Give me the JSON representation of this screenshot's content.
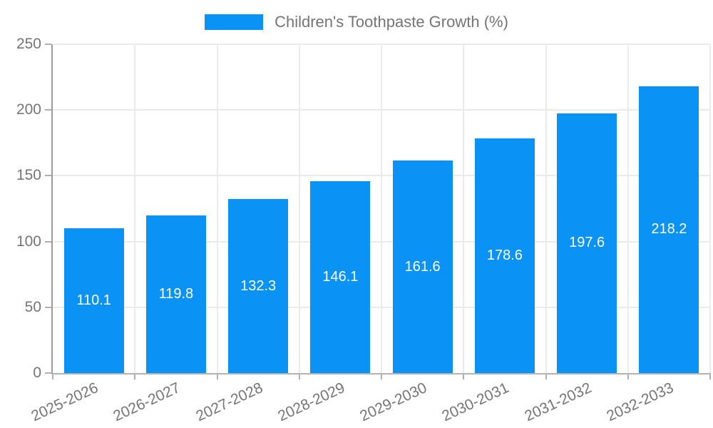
{
  "chart_data": {
    "type": "bar",
    "title": "Children's Toothpaste Growth (%)",
    "legend": [
      "Children's Toothpaste Growth (%)"
    ],
    "legend_position": "top",
    "categories": [
      "2025-2026",
      "2026-2027",
      "2027-2028",
      "2028-2029",
      "2029-2030",
      "2030-2031",
      "2031-2032",
      "2032-2033"
    ],
    "series": [
      {
        "name": "Children's Toothpaste Growth (%)",
        "values": [
          110.1,
          119.8,
          132.3,
          146.1,
          161.6,
          178.6,
          197.6,
          218.2
        ]
      }
    ],
    "xlabel": "",
    "ylabel": "",
    "ylim": [
      0,
      250
    ],
    "yticks": [
      0,
      50,
      100,
      150,
      200,
      250
    ],
    "grid": true,
    "x_label_rotation_deg": -25,
    "colors": {
      "bar": "#0A92F5",
      "axis_label": "#757575",
      "value_label": "#FFFFFF",
      "gridline": "#EBEBEB",
      "y_axis_line": "#9A9A9A",
      "x_axis_line": "#B3B3B3",
      "tick": "#B0B0B0",
      "background": "#FFFFFF"
    }
  }
}
